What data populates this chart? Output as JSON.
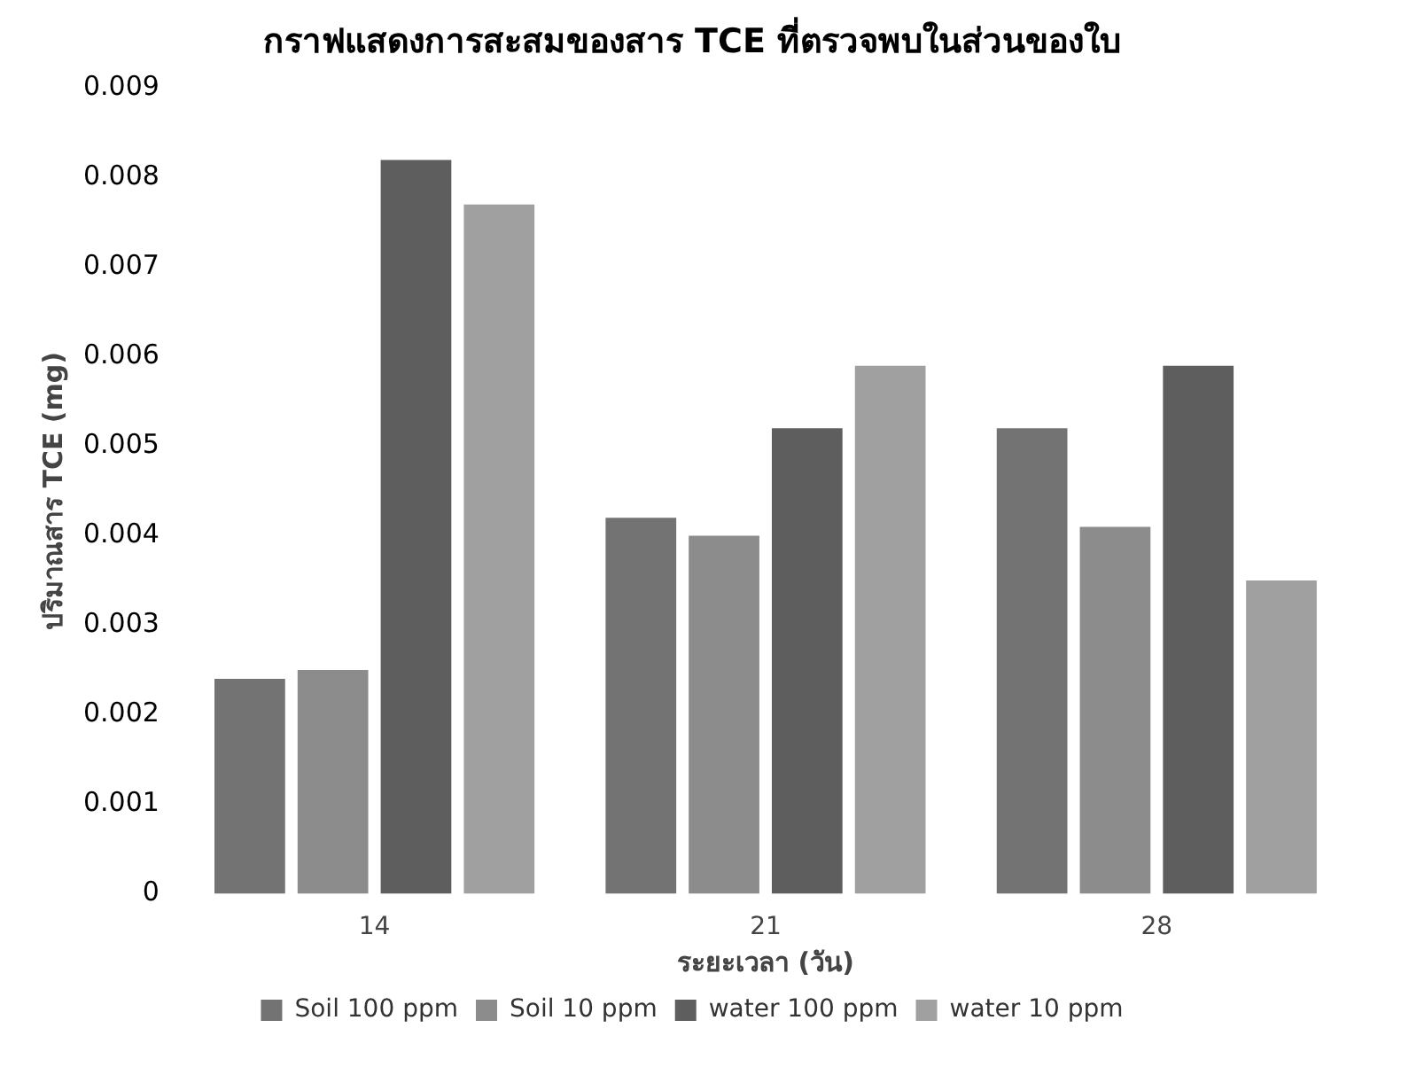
{
  "chart_data": {
    "type": "bar",
    "title": "กราฟแสดงการสะสมของสาร TCE ที่ตรวจพบในส่วนของใบ",
    "xlabel": "ระยะเวลา (วัน)",
    "ylabel": "ปริมาณสาร TCE (mg)",
    "categories": [
      "14",
      "21",
      "28"
    ],
    "series": [
      {
        "name": "Soil 100 ppm",
        "color": "#737373",
        "values": [
          0.0024,
          0.0042,
          0.0052
        ]
      },
      {
        "name": "Soil 10 ppm",
        "color": "#8c8c8c",
        "values": [
          0.0025,
          0.004,
          0.0041
        ]
      },
      {
        "name": "water 100 ppm",
        "color": "#5e5e5e",
        "values": [
          0.0082,
          0.0052,
          0.0059
        ]
      },
      {
        "name": "water 10 ppm",
        "color": "#a0a0a0",
        "values": [
          0.0077,
          0.0059,
          0.0035
        ]
      }
    ],
    "ylim": [
      0,
      0.009
    ],
    "yticks": [
      0,
      0.001,
      0.002,
      0.003,
      0.004,
      0.005,
      0.006,
      0.007,
      0.008,
      0.009
    ],
    "grid": false,
    "legend": "bottom"
  }
}
